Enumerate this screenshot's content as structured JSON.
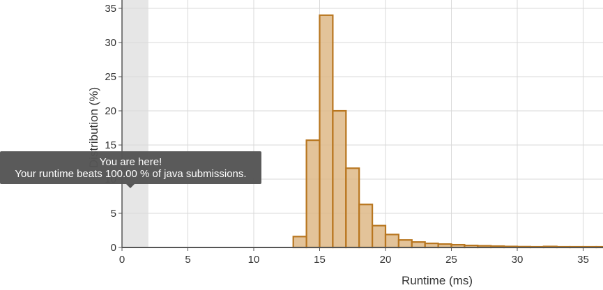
{
  "chart_data": {
    "type": "bar",
    "title": "",
    "xlabel": "Runtime (ms)",
    "ylabel": "Distribution (%)",
    "xlim": [
      -0.5,
      36.5
    ],
    "ylim": [
      0,
      36
    ],
    "x_ticks": [
      0,
      5,
      10,
      15,
      20,
      25,
      30,
      35
    ],
    "y_ticks": [
      0,
      5,
      10,
      15,
      20,
      25,
      30,
      35
    ],
    "grid": true,
    "bin_width": 1,
    "bar_color": "#deb887",
    "bar_edge_color": "#b8761f",
    "highlight_range": [
      0,
      2
    ],
    "highlight_color": "#e6e6e6",
    "bars": [
      {
        "x": 13,
        "value": 1.6
      },
      {
        "x": 14,
        "value": 15.7
      },
      {
        "x": 15,
        "value": 34.0
      },
      {
        "x": 16,
        "value": 20.0
      },
      {
        "x": 17,
        "value": 11.6
      },
      {
        "x": 18,
        "value": 6.3
      },
      {
        "x": 19,
        "value": 3.2
      },
      {
        "x": 20,
        "value": 1.9
      },
      {
        "x": 21,
        "value": 1.1
      },
      {
        "x": 22,
        "value": 0.8
      },
      {
        "x": 23,
        "value": 0.6
      },
      {
        "x": 24,
        "value": 0.5
      },
      {
        "x": 25,
        "value": 0.4
      },
      {
        "x": 26,
        "value": 0.3
      },
      {
        "x": 27,
        "value": 0.25
      },
      {
        "x": 28,
        "value": 0.2
      },
      {
        "x": 29,
        "value": 0.15
      },
      {
        "x": 30,
        "value": 0.12
      },
      {
        "x": 31,
        "value": 0.1
      },
      {
        "x": 32,
        "value": 0.15
      },
      {
        "x": 33,
        "value": 0.1
      },
      {
        "x": 34,
        "value": 0.1
      },
      {
        "x": 35,
        "value": 0.1
      },
      {
        "x": 36,
        "value": 0.1
      }
    ]
  },
  "tooltip": {
    "line1": "You are here!",
    "line2": "Your runtime beats 100.00 % of java submissions."
  }
}
